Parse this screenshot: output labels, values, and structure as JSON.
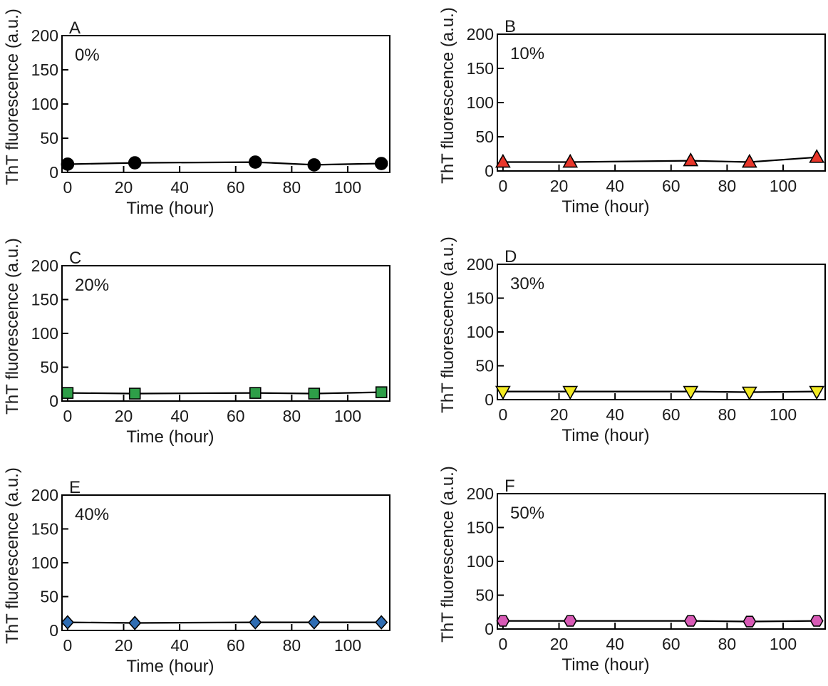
{
  "chart_data": [
    {
      "panel_label": "A",
      "type": "line",
      "inset_label": "0%",
      "xlabel": "Time (hour)",
      "ylabel": "ThT fluorescence (a.u.)",
      "xlim": [
        -2,
        115
      ],
      "ylim": [
        0,
        200
      ],
      "xticks": [
        0,
        20,
        40,
        60,
        80,
        100
      ],
      "yticks": [
        0,
        50,
        100,
        150,
        200
      ],
      "marker": "circle",
      "marker_color": "#000000",
      "x": [
        0,
        24,
        67,
        88,
        112
      ],
      "y": [
        12,
        14,
        15,
        11,
        13
      ]
    },
    {
      "panel_label": "B",
      "type": "line",
      "inset_label": "10%",
      "xlabel": "Time (hour)",
      "ylabel": "ThT fluorescence (a.u.)",
      "xlim": [
        -2,
        115
      ],
      "ylim": [
        0,
        200
      ],
      "xticks": [
        0,
        20,
        40,
        60,
        80,
        100
      ],
      "yticks": [
        0,
        50,
        100,
        150,
        200
      ],
      "marker": "triangle-up",
      "marker_color": "#e8362a",
      "x": [
        0,
        24,
        67,
        88,
        112
      ],
      "y": [
        13,
        13,
        15,
        13,
        20
      ]
    },
    {
      "panel_label": "C",
      "type": "line",
      "inset_label": "20%",
      "xlabel": "Time (hour)",
      "ylabel": "ThT fluorescence (a.u.)",
      "xlim": [
        -2,
        115
      ],
      "ylim": [
        0,
        200
      ],
      "xticks": [
        0,
        20,
        40,
        60,
        80,
        100
      ],
      "yticks": [
        0,
        50,
        100,
        150,
        200
      ],
      "marker": "square",
      "marker_color": "#2e9e48",
      "x": [
        0,
        24,
        67,
        88,
        112
      ],
      "y": [
        12,
        11,
        12,
        11,
        13
      ]
    },
    {
      "panel_label": "D",
      "type": "line",
      "inset_label": "30%",
      "xlabel": "Time (hour)",
      "ylabel": "ThT fluorescence (a.u.)",
      "xlim": [
        -2,
        115
      ],
      "ylim": [
        0,
        200
      ],
      "xticks": [
        0,
        20,
        40,
        60,
        80,
        100
      ],
      "yticks": [
        0,
        50,
        100,
        150,
        200
      ],
      "marker": "triangle-down",
      "marker_color": "#f3ea22",
      "x": [
        0,
        24,
        67,
        88,
        112
      ],
      "y": [
        12,
        12,
        12,
        11,
        12
      ]
    },
    {
      "panel_label": "E",
      "type": "line",
      "inset_label": "40%",
      "xlabel": "Time (hour)",
      "ylabel": "ThT fluorescence (a.u.)",
      "xlim": [
        -2,
        115
      ],
      "ylim": [
        0,
        200
      ],
      "xticks": [
        0,
        20,
        40,
        60,
        80,
        100
      ],
      "yticks": [
        0,
        50,
        100,
        150,
        200
      ],
      "marker": "diamond",
      "marker_color": "#2f6db3",
      "x": [
        0,
        24,
        67,
        88,
        112
      ],
      "y": [
        12,
        11,
        12,
        12,
        12
      ]
    },
    {
      "panel_label": "F",
      "type": "line",
      "inset_label": "50%",
      "xlabel": "Time (hour)",
      "ylabel": "ThT fluorescence (a.u.)",
      "xlim": [
        -2,
        115
      ],
      "ylim": [
        0,
        200
      ],
      "xticks": [
        0,
        20,
        40,
        60,
        80,
        100
      ],
      "yticks": [
        0,
        50,
        100,
        150,
        200
      ],
      "marker": "hexagon",
      "marker_color": "#d85ab6",
      "x": [
        0,
        24,
        67,
        88,
        112
      ],
      "y": [
        12,
        12,
        12,
        11,
        12
      ]
    }
  ]
}
